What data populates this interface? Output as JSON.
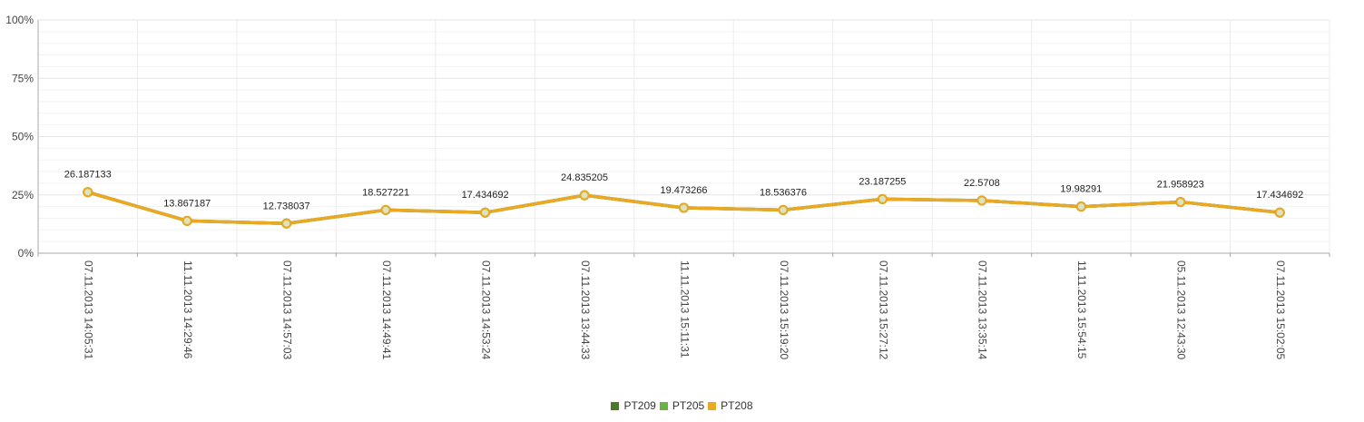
{
  "chart_data": {
    "type": "line",
    "title": "",
    "xlabel": "",
    "ylabel": "",
    "ylim": [
      0,
      100
    ],
    "y_ticks": [
      "0%",
      "25%",
      "50%",
      "75%",
      "100%"
    ],
    "y_tick_values": [
      0,
      25,
      50,
      75,
      100
    ],
    "grid": true,
    "legend_position": "bottom-center",
    "categories": [
      "07.11.2013 14:05:31",
      "11.11.2013 14:29:46",
      "07.11.2013 14:57:03",
      "07.11.2013 14:49:41",
      "07.11.2013 14:53:24",
      "07.11.2013 13:44:33",
      "11.11.2013 15:11:31",
      "07.11.2013 15:19:20",
      "07.11.2013 15:27:12",
      "07.11.2013 13:35:14",
      "11.11.2013 15:54:15",
      "05.11.2013 12:43:30",
      "07.11.2013 15:02:05"
    ],
    "data_labels": [
      "26.187133",
      "13.867187",
      "12.738037",
      "18.527221",
      "17.434692",
      "24.835205",
      "19.473266",
      "18.536376",
      "23.187255",
      "22.5708",
      "19.98291",
      "21.958923",
      "17.434692"
    ],
    "series": [
      {
        "name": "PT209",
        "color": "#4a7a22",
        "values": [
          26.187133,
          13.867187,
          12.738037,
          18.527221,
          17.434692,
          24.835205,
          19.473266,
          18.536376,
          23.187255,
          22.5708,
          19.98291,
          21.958923,
          17.434692
        ]
      },
      {
        "name": "PT205",
        "color": "#6db33f",
        "values": [
          26.187133,
          13.867187,
          12.738037,
          18.527221,
          17.434692,
          24.835205,
          19.473266,
          18.536376,
          23.187255,
          22.5708,
          19.98291,
          21.958923,
          17.434692
        ]
      },
      {
        "name": "PT208",
        "color": "#eaa825",
        "values": [
          26.187133,
          13.867187,
          12.738037,
          18.527221,
          17.434692,
          24.835205,
          19.473266,
          18.536376,
          23.187255,
          22.5708,
          19.98291,
          21.958923,
          17.434692
        ]
      }
    ]
  }
}
